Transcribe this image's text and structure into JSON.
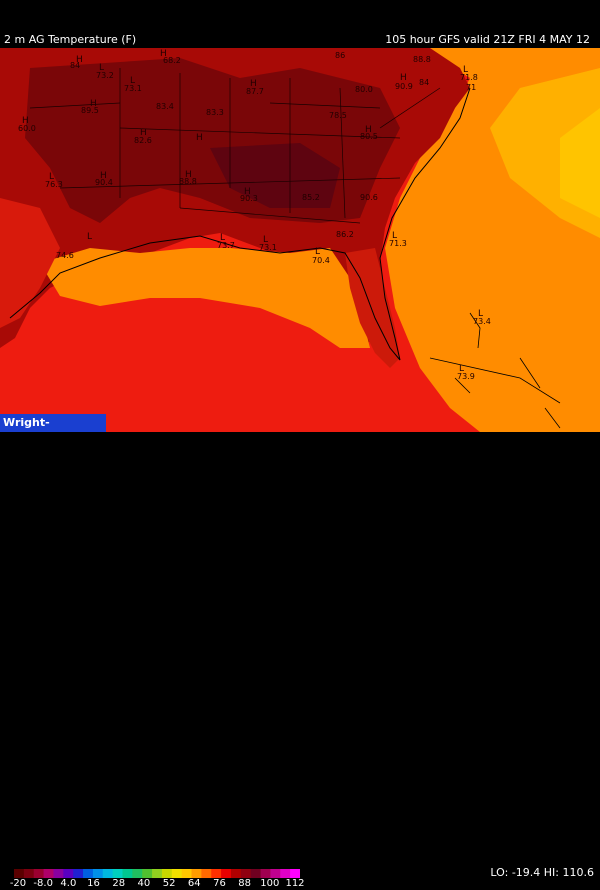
{
  "header": {
    "title": "2 m AG Temperature (F)",
    "valid": "105 hour GFS valid 21Z FRI  4 MAY 12"
  },
  "watermark": "Wright-Weather.com",
  "legend": {
    "ticks": [
      "-20",
      "-8.0",
      "4.0",
      "16",
      "28",
      "40",
      "52",
      "64",
      "76",
      "88",
      "100",
      "112"
    ],
    "colors": [
      "#5a0000",
      "#7a0010",
      "#9a0030",
      "#b0006a",
      "#8a00a0",
      "#5a00c0",
      "#2020d0",
      "#0060e0",
      "#0090e8",
      "#00b8e0",
      "#00d0c0",
      "#00c890",
      "#20c060",
      "#50c030",
      "#90d020",
      "#c8d800",
      "#f0e000",
      "#ffc800",
      "#ff9c00",
      "#ff6a00",
      "#ff3000",
      "#e80000",
      "#b00000",
      "#900010",
      "#700020",
      "#a00050",
      "#c00090",
      "#e000c8",
      "#ff00ff"
    ]
  },
  "lo_hi": "LO: -19.4  HI: 110.6",
  "map_labels": {
    "values": [
      "84",
      "73.2",
      "68.2",
      "86",
      "88.8",
      "73.1",
      "83.4",
      "83.3",
      "87.7",
      "80.0",
      "90.9",
      "84",
      "71.8",
      "71",
      "60.0",
      "89.5",
      "82.6",
      "78.5",
      "80.5",
      "76.3",
      "90.4",
      "88.8",
      "90.3",
      "85.2",
      "90.6",
      "86.2",
      "71.3",
      "74.6",
      "73.7",
      "73.1",
      "70.4",
      "73.4",
      "73.9"
    ],
    "highs": [
      "H",
      "H",
      "H",
      "H",
      "H",
      "H",
      "H",
      "H",
      "H",
      "H",
      "H",
      "H"
    ],
    "lows": [
      "L",
      "L",
      "L",
      "L",
      "L",
      "L",
      "L",
      "L",
      "L",
      "L",
      "L"
    ]
  }
}
